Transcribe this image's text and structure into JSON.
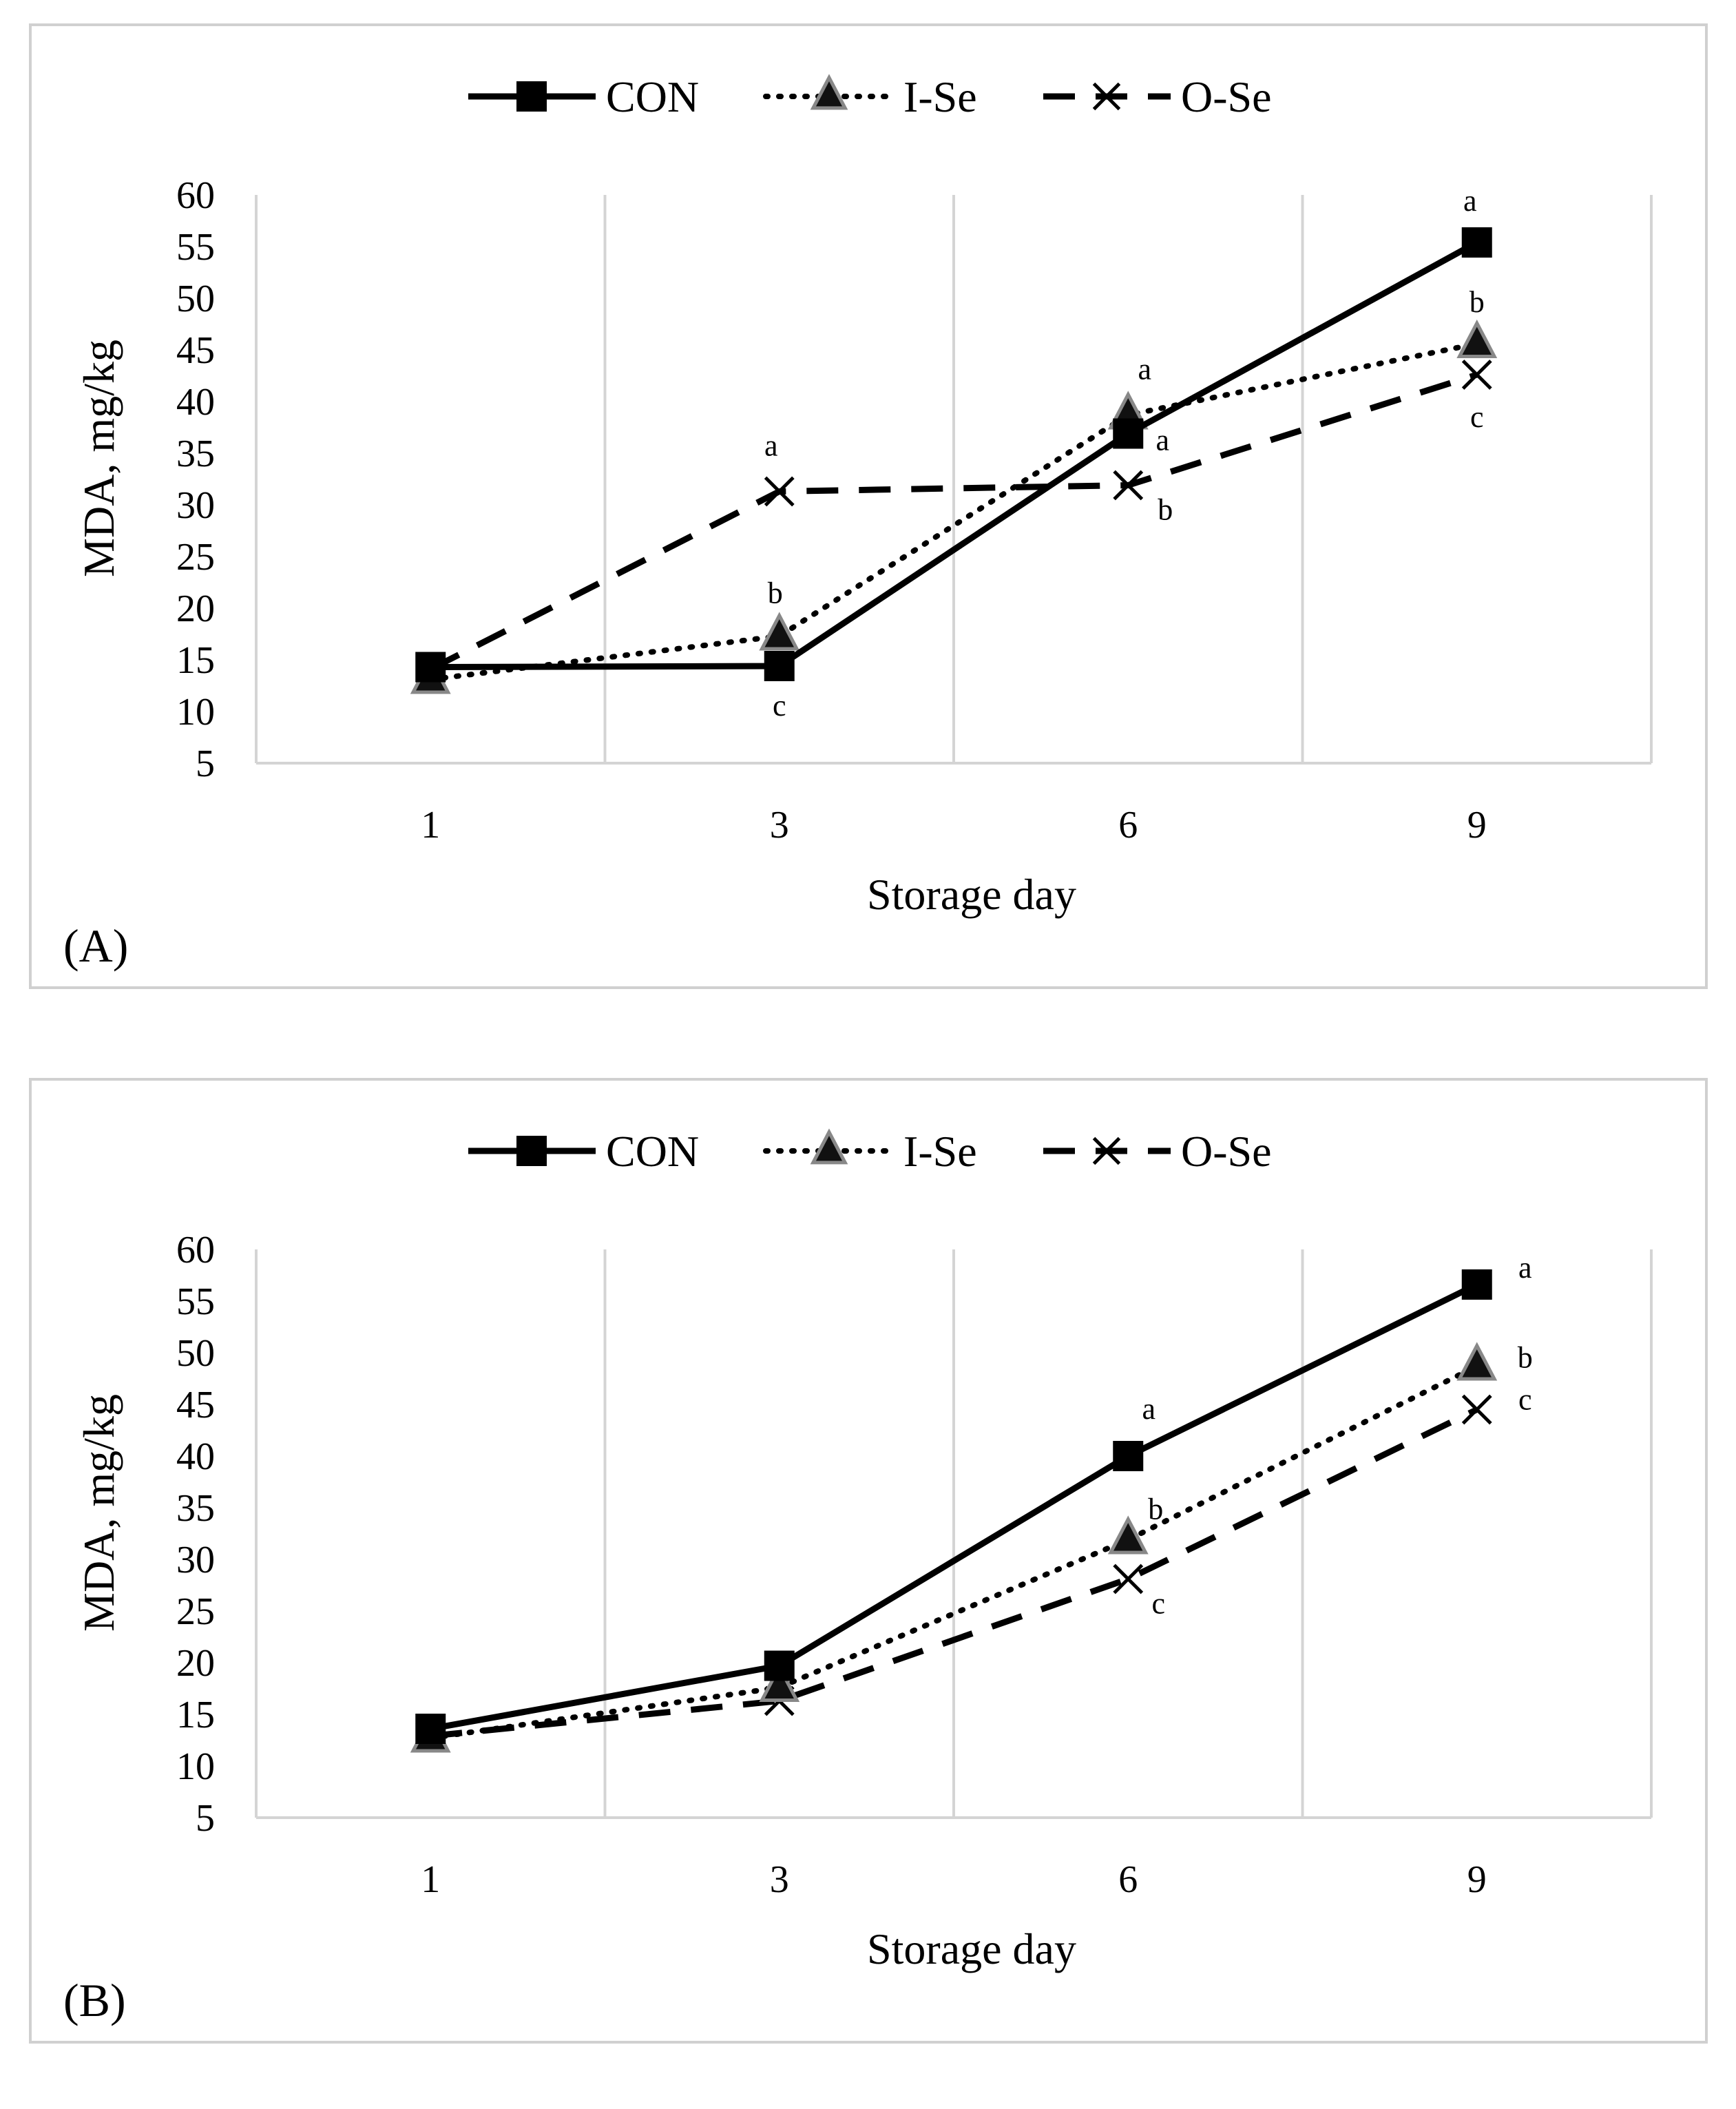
{
  "chart_data": [
    {
      "type": "line",
      "panel_label": "(A)",
      "xlabel": "Storage day",
      "ylabel": "MDA, mg/kg",
      "categories": [
        "1",
        "3",
        "6",
        "9"
      ],
      "ylim": [
        5,
        60
      ],
      "yticks": [
        "60",
        "55",
        "50",
        "45",
        "40",
        "35",
        "30",
        "25",
        "20",
        "15",
        "10",
        "5"
      ],
      "series": [
        {
          "name": "CON",
          "values": [
            14.3,
            14.4,
            36.9,
            55.4
          ],
          "letters": [
            "",
            "c",
            "a",
            "a"
          ]
        },
        {
          "name": "I-Se",
          "values": [
            13.1,
            17.3,
            38.7,
            45.6
          ],
          "letters": [
            "",
            "b",
            "a",
            "b"
          ]
        },
        {
          "name": "O-Se",
          "values": [
            14.1,
            31.3,
            31.9,
            42.6
          ],
          "letters": [
            "",
            "a",
            "b",
            "c"
          ]
        }
      ]
    },
    {
      "type": "line",
      "panel_label": "(B)",
      "xlabel": "Storage day",
      "ylabel": "MDA, mg/kg",
      "categories": [
        "1",
        "3",
        "6",
        "9"
      ],
      "ylim": [
        5,
        60
      ],
      "yticks": [
        "60",
        "55",
        "50",
        "45",
        "40",
        "35",
        "30",
        "25",
        "20",
        "15",
        "10",
        "5"
      ],
      "series": [
        {
          "name": "CON",
          "values": [
            13.6,
            19.7,
            40.0,
            56.6
          ],
          "letters": [
            "",
            "",
            "a",
            "a"
          ]
        },
        {
          "name": "I-Se",
          "values": [
            12.7,
            17.6,
            31.9,
            48.7
          ],
          "letters": [
            "",
            "",
            "b",
            "b"
          ]
        },
        {
          "name": "O-Se",
          "values": [
            12.9,
            16.3,
            28.1,
            44.5
          ],
          "letters": [
            "",
            "",
            "c",
            "c"
          ]
        }
      ]
    }
  ],
  "legend": [
    {
      "name": "CON",
      "marker": "square-icon",
      "dash": "solid"
    },
    {
      "name": "I-Se",
      "marker": "triangle-icon",
      "dash": "dotted"
    },
    {
      "name": "O-Se",
      "marker": "x-icon",
      "dash": "dashed"
    }
  ]
}
